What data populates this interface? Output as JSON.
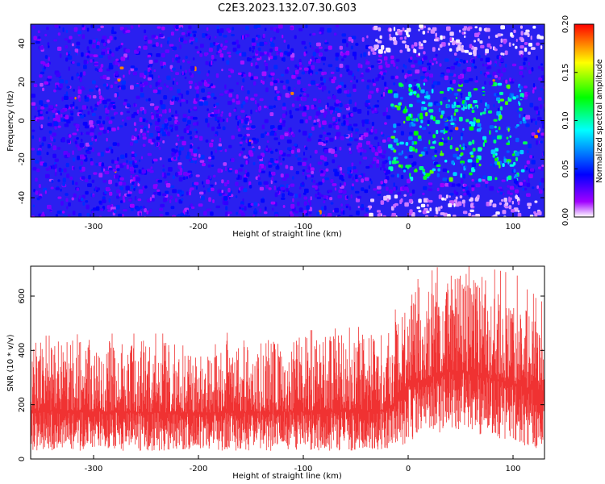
{
  "title": "C2E3.2023.132.07.30.G03",
  "chart_data": [
    {
      "type": "heatmap",
      "xlabel": "Height of straight line (km)",
      "ylabel": "Frequency (Hz)",
      "xlim": [
        -360,
        130
      ],
      "ylim": [
        -50,
        50
      ],
      "xticks": [
        -300,
        -200,
        -100,
        0,
        100
      ],
      "yticks": [
        -40,
        -20,
        0,
        20,
        40
      ],
      "colorbar": {
        "label": "Normalized spectral amplitude",
        "range": [
          0.0,
          0.2
        ],
        "ticks": [
          "0.00",
          "0.05",
          "0.10",
          "0.15",
          "0.20"
        ],
        "colormap": [
          "#ffffff",
          "#a000ff",
          "#0000ff",
          "#00ffff",
          "#00ff00",
          "#ffff00",
          "#ff0000"
        ]
      },
      "features": {
        "background_level": 0.03,
        "enhanced_region": {
          "x": [
            -20,
            110
          ],
          "y": [
            -30,
            20
          ],
          "level": 0.1
        },
        "faint_regions": [
          {
            "x": [
              -40,
              130
            ],
            "y": [
              35,
              50
            ]
          },
          {
            "x": [
              -40,
              130
            ],
            "y": [
              -50,
              -38
            ]
          }
        ]
      }
    },
    {
      "type": "line",
      "xlabel": "Height of straight line (km)",
      "ylabel": "SNR (10 * v/v)",
      "xlim": [
        -360,
        130
      ],
      "ylim": [
        0,
        710
      ],
      "xticks": [
        -300,
        -200,
        -100,
        0,
        100
      ],
      "yticks": [
        0,
        200,
        400,
        600
      ],
      "color": "#f03232",
      "envelope": {
        "x": [
          -360,
          -300,
          -200,
          -100,
          -20,
          0,
          40,
          100,
          130
        ],
        "low": [
          30,
          30,
          30,
          30,
          30,
          60,
          110,
          60,
          30
        ],
        "median": [
          175,
          175,
          170,
          175,
          180,
          270,
          330,
          280,
          240
        ],
        "high": [
          430,
          440,
          440,
          450,
          470,
          610,
          700,
          650,
          600
        ]
      }
    }
  ]
}
